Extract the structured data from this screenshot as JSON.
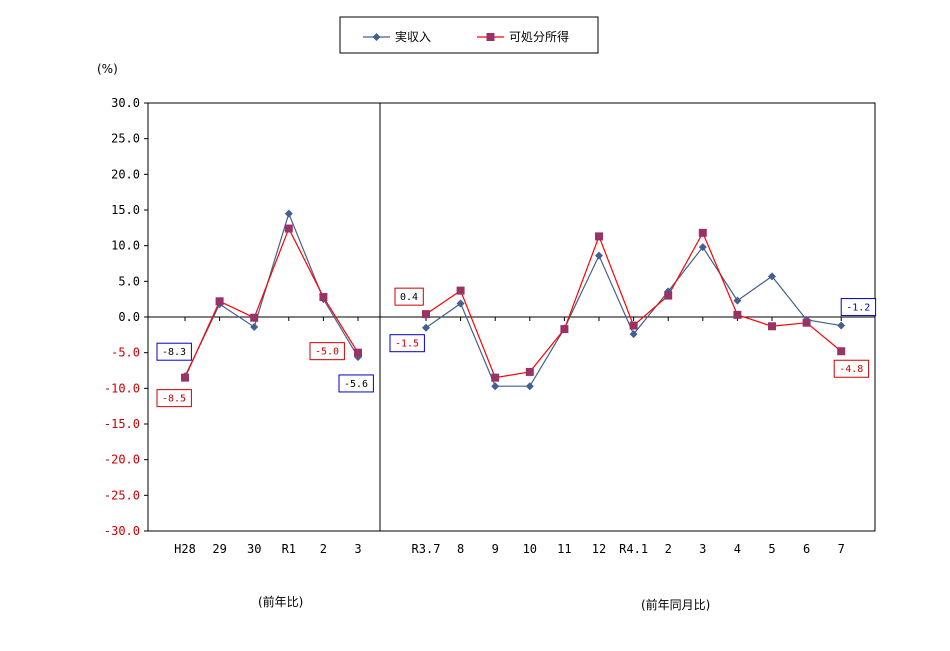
{
  "chart_data": {
    "type": "line",
    "y_unit": "(%)",
    "ylim": [
      -30,
      30
    ],
    "y_ticks": [
      "30.0",
      "25.0",
      "20.0",
      "15.0",
      "10.0",
      "5.0",
      "0.0",
      "-5.0",
      "-10.0",
      "-15.0",
      "-20.0",
      "-25.0",
      "-30.0"
    ],
    "categories": [
      "H28",
      "29",
      "30",
      "R1",
      "2",
      "3",
      "R3.7",
      "8",
      "9",
      "10",
      "11",
      "12",
      "R4.1",
      "2",
      "3",
      "4",
      "5",
      "6",
      "7"
    ],
    "section_labels": [
      "(前年比)",
      "(前年同月比)"
    ],
    "grid": false,
    "legend_position": "top-center",
    "series": [
      {
        "name": "実収入",
        "color": "#44608f",
        "marker": "diamond",
        "values": [
          -8.3,
          1.8,
          -1.4,
          14.5,
          2.5,
          -5.6,
          -1.5,
          1.9,
          -9.7,
          -9.7,
          -1.6,
          8.6,
          -2.4,
          3.6,
          9.8,
          2.3,
          5.7,
          -0.4,
          -1.2
        ]
      },
      {
        "name": "可処分所得",
        "color": "#ff0000",
        "marker_color": "#993366",
        "marker": "square",
        "values": [
          -8.5,
          2.2,
          -0.1,
          12.4,
          2.8,
          -5.0,
          0.4,
          3.7,
          -8.5,
          -7.7,
          -1.7,
          11.3,
          -1.2,
          3.0,
          11.8,
          0.3,
          -1.3,
          -0.8,
          -4.8
        ]
      }
    ],
    "data_labels": [
      {
        "text": "-8.3",
        "series": 0,
        "index": 0,
        "border": "#0000cc",
        "color": "#000000"
      },
      {
        "text": "-8.5",
        "series": 1,
        "index": 0,
        "border": "#cc0000",
        "color": "#cc0000"
      },
      {
        "text": "-5.0",
        "series": 1,
        "index": 5,
        "border": "#cc0000",
        "color": "#cc0000"
      },
      {
        "text": "-5.6",
        "series": 0,
        "index": 5,
        "border": "#0000cc",
        "color": "#000000"
      },
      {
        "text": "0.4",
        "series": 1,
        "index": 6,
        "border": "#cc0000",
        "color": "#000000"
      },
      {
        "text": "-1.5",
        "series": 0,
        "index": 6,
        "border": "#0000cc",
        "color": "#cc0000"
      },
      {
        "text": "-1.2",
        "series": 0,
        "index": 18,
        "border": "#0000cc",
        "color": "#0000cc"
      },
      {
        "text": "-4.8",
        "series": 1,
        "index": 18,
        "border": "#cc0000",
        "color": "#cc0000"
      }
    ]
  }
}
